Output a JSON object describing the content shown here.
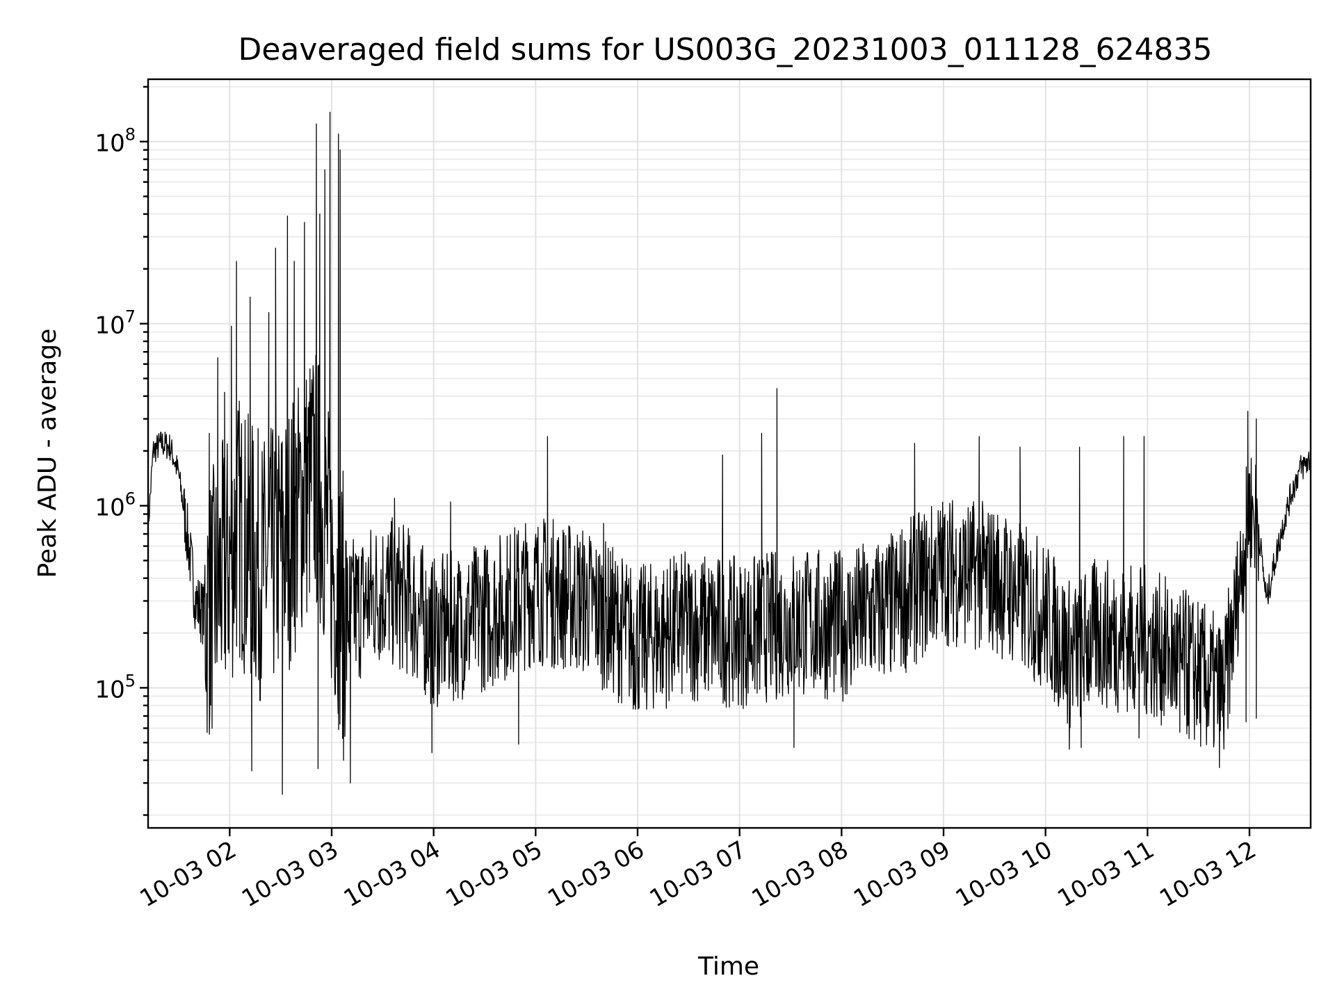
{
  "chart_data": {
    "type": "line",
    "title": "Deaveraged field sums for US003G_20231003_011128_624835",
    "xlabel": "Time",
    "ylabel": "Peak ADU - average",
    "yscale": "log",
    "xlim": [
      "2023-10-03T01:12",
      "2023-10-03T12:36"
    ],
    "ylim": [
      17000,
      220000000
    ],
    "grid": "major and minor",
    "x_ticks": [
      "10-03 02",
      "10-03 03",
      "10-03 04",
      "10-03 05",
      "10-03 06",
      "10-03 07",
      "10-03 08",
      "10-03 09",
      "10-03 10",
      "10-03 11",
      "10-03 12"
    ],
    "y_ticks": [
      {
        "value": 100000,
        "base": "10",
        "exp": "5"
      },
      {
        "value": 1000000,
        "base": "10",
        "exp": "6"
      },
      {
        "value": 10000000,
        "base": "10",
        "exp": "7"
      },
      {
        "value": 100000000,
        "base": "10",
        "exp": "8"
      }
    ],
    "series": [
      {
        "color": "#000000",
        "x": [
          "2023-10-03T01:12",
          "2023-10-03T01:15",
          "2023-10-03T01:20",
          "2023-10-03T01:25",
          "2023-10-03T01:30",
          "2023-10-03T01:35",
          "2023-10-03T01:40",
          "2023-10-03T01:45",
          "2023-10-03T01:50",
          "2023-10-03T01:55",
          "2023-10-03T02:00",
          "2023-10-03T02:05",
          "2023-10-03T02:10",
          "2023-10-03T02:15",
          "2023-10-03T02:20",
          "2023-10-03T02:25",
          "2023-10-03T02:30",
          "2023-10-03T02:35",
          "2023-10-03T02:40",
          "2023-10-03T02:45",
          "2023-10-03T02:50",
          "2023-10-03T02:55",
          "2023-10-03T03:00",
          "2023-10-03T03:05",
          "2023-10-03T03:10",
          "2023-10-03T03:20",
          "2023-10-03T03:30",
          "2023-10-03T03:45",
          "2023-10-03T04:00",
          "2023-10-03T04:30",
          "2023-10-03T05:00",
          "2023-10-03T05:30",
          "2023-10-03T06:00",
          "2023-10-03T06:30",
          "2023-10-03T07:00",
          "2023-10-03T07:30",
          "2023-10-03T08:00",
          "2023-10-03T08:30",
          "2023-10-03T09:00",
          "2023-10-03T09:30",
          "2023-10-03T10:00",
          "2023-10-03T10:15",
          "2023-10-03T10:30",
          "2023-10-03T11:00",
          "2023-10-03T11:30",
          "2023-10-03T11:45",
          "2023-10-03T12:00",
          "2023-10-03T12:05",
          "2023-10-03T12:10",
          "2023-10-03T12:15",
          "2023-10-03T12:20",
          "2023-10-03T12:25",
          "2023-10-03T12:30",
          "2023-10-03T12:36"
        ],
        "values": [
          750000,
          2000000,
          2200000,
          2100000,
          1500000,
          700000,
          300000,
          250000,
          300000,
          400000,
          500000,
          800000,
          600000,
          500000,
          450000,
          500000,
          600000,
          700000,
          900000,
          1200000,
          1500000,
          1000000,
          500000,
          300000,
          250000,
          300000,
          350000,
          300000,
          200000,
          250000,
          350000,
          300000,
          180000,
          220000,
          200000,
          230000,
          220000,
          280000,
          450000,
          400000,
          250000,
          150000,
          200000,
          180000,
          120000,
          90000,
          1000000,
          800000,
          300000,
          500000,
          800000,
          1200000,
          1600000,
          1800000
        ],
        "spikes_high": [
          [
            "2023-10-03T01:48",
            2500000
          ],
          [
            "2023-10-03T01:53",
            6500000
          ],
          [
            "2023-10-03T01:57",
            4200000
          ],
          [
            "2023-10-03T02:01",
            9700000
          ],
          [
            "2023-10-03T02:04",
            22000000
          ],
          [
            "2023-10-03T02:12",
            14000000
          ],
          [
            "2023-10-03T02:23",
            11500000
          ],
          [
            "2023-10-03T02:27",
            26000000
          ],
          [
            "2023-10-03T02:34",
            39000000
          ],
          [
            "2023-10-03T02:38",
            22000000
          ],
          [
            "2023-10-03T02:44",
            36000000
          ],
          [
            "2023-10-03T02:51",
            125000000
          ],
          [
            "2023-10-03T02:53",
            40000000
          ],
          [
            "2023-10-03T02:56",
            70000000
          ],
          [
            "2023-10-03T02:59",
            145000000
          ],
          [
            "2023-10-03T03:04",
            110000000
          ],
          [
            "2023-10-03T03:05",
            90000000
          ],
          [
            "2023-10-03T03:37",
            1100000
          ],
          [
            "2023-10-03T04:10",
            1050000
          ],
          [
            "2023-10-03T05:07",
            2400000
          ],
          [
            "2023-10-03T05:40",
            800000
          ],
          [
            "2023-10-03T06:50",
            1900000
          ],
          [
            "2023-10-03T07:13",
            2500000
          ],
          [
            "2023-10-03T07:22",
            4400000
          ],
          [
            "2023-10-03T08:43",
            2200000
          ],
          [
            "2023-10-03T09:21",
            2400000
          ],
          [
            "2023-10-03T09:45",
            2100000
          ],
          [
            "2023-10-03T10:20",
            2100000
          ],
          [
            "2023-10-03T10:46",
            2400000
          ],
          [
            "2023-10-03T10:58",
            2400000
          ],
          [
            "2023-10-03T11:59",
            3300000
          ],
          [
            "2023-10-03T12:04",
            3000000
          ]
        ],
        "spikes_low": [
          [
            "2023-10-03T02:13",
            35000
          ],
          [
            "2023-10-03T02:31",
            26000
          ],
          [
            "2023-10-03T02:52",
            36000
          ],
          [
            "2023-10-03T03:07",
            40000
          ],
          [
            "2023-10-03T03:11",
            30000
          ],
          [
            "2023-10-03T03:59",
            44000
          ],
          [
            "2023-10-03T04:50",
            49000
          ],
          [
            "2023-10-03T07:32",
            47000
          ],
          [
            "2023-10-03T10:14",
            46000
          ],
          [
            "2023-10-03T10:21",
            47000
          ],
          [
            "2023-10-03T10:55",
            53000
          ],
          [
            "2023-10-03T11:19",
            57000
          ],
          [
            "2023-10-03T11:58",
            65000
          ],
          [
            "2023-10-03T12:04",
            68000
          ]
        ]
      }
    ]
  }
}
